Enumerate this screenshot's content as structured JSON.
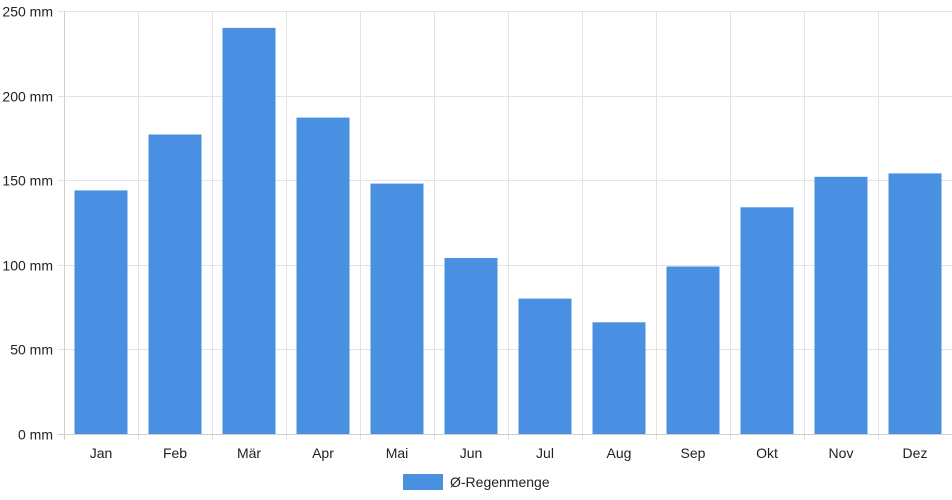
{
  "chart_data": {
    "type": "bar",
    "categories": [
      "Jan",
      "Feb",
      "Mär",
      "Apr",
      "Mai",
      "Jun",
      "Jul",
      "Aug",
      "Sep",
      "Okt",
      "Nov",
      "Dez"
    ],
    "series": [
      {
        "name": "Ø-Regenmenge",
        "color": "#4a90e2",
        "values": [
          144,
          177,
          240,
          187,
          148,
          104,
          80,
          66,
          99,
          134,
          152,
          154
        ]
      }
    ],
    "y_unit": "mm",
    "ylim": [
      0,
      250
    ],
    "y_ticks": [
      0,
      50,
      100,
      150,
      200,
      250
    ],
    "y_tick_labels": [
      "0 mm",
      "50 mm",
      "100 mm",
      "150 mm",
      "200 mm",
      "250 mm"
    ],
    "grid": true,
    "legend_position": "bottom-center"
  }
}
